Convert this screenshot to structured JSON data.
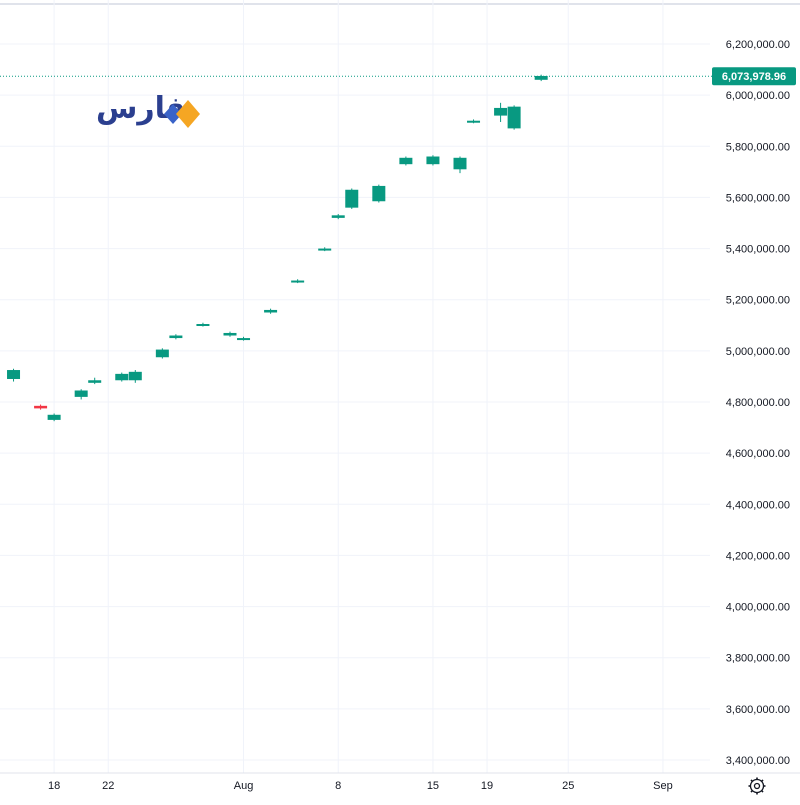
{
  "logo": {
    "text": "فارس",
    "colors": {
      "text": "#2b3f8f",
      "diamond_orange": "#f5a623",
      "diamond_blue": "#3a63c8"
    }
  },
  "colors": {
    "up": "#089981",
    "down": "#f23645",
    "grid": "#f0f3fa",
    "axis_text": "#131722",
    "last_price_tag": "#089981"
  },
  "chart_data": {
    "type": "candlestick",
    "grid": true,
    "y_axis_position": "right",
    "ylim": [
      3340000,
      6340000
    ],
    "y_ticks": [
      {
        "value": 6200000,
        "label": "6,200,000.00"
      },
      {
        "value": 6000000,
        "label": "6,000,000.00"
      },
      {
        "value": 5800000,
        "label": "5,800,000.00"
      },
      {
        "value": 5600000,
        "label": "5,600,000.00"
      },
      {
        "value": 5400000,
        "label": "5,400,000.00"
      },
      {
        "value": 5200000,
        "label": "5,200,000.00"
      },
      {
        "value": 5000000,
        "label": "5,000,000.00"
      },
      {
        "value": 4800000,
        "label": "4,800,000.00"
      },
      {
        "value": 4600000,
        "label": "4,600,000.00"
      },
      {
        "value": 4400000,
        "label": "4,400,000.00"
      },
      {
        "value": 4200000,
        "label": "4,200,000.00"
      },
      {
        "value": 4000000,
        "label": "4,000,000.00"
      },
      {
        "value": 3800000,
        "label": "3,800,000.00"
      },
      {
        "value": 3600000,
        "label": "3,600,000.00"
      },
      {
        "value": 3400000,
        "label": "3,400,000.00"
      }
    ],
    "x_domain": [
      "2024-07-14",
      "2024-09-03"
    ],
    "x_ticks": [
      {
        "date": "2024-07-18",
        "label": "18"
      },
      {
        "date": "2024-07-22",
        "label": "22"
      },
      {
        "date": "2024-08-01",
        "label": "Aug"
      },
      {
        "date": "2024-08-08",
        "label": "8"
      },
      {
        "date": "2024-08-15",
        "label": "15"
      },
      {
        "date": "2024-08-19",
        "label": "19"
      },
      {
        "date": "2024-08-25",
        "label": "25"
      },
      {
        "date": "2024-09-01",
        "label": "Sep"
      }
    ],
    "candles": [
      {
        "date": "2024-07-15",
        "open": 4890000,
        "high": 4930000,
        "low": 4880000,
        "close": 4925000
      },
      {
        "date": "2024-07-17",
        "open": 4785000,
        "high": 4790000,
        "low": 4770000,
        "close": 4775000
      },
      {
        "date": "2024-07-18",
        "open": 4730000,
        "high": 4755000,
        "low": 4725000,
        "close": 4750000
      },
      {
        "date": "2024-07-20",
        "open": 4820000,
        "high": 4850000,
        "low": 4810000,
        "close": 4845000
      },
      {
        "date": "2024-07-21",
        "open": 4875000,
        "high": 4895000,
        "low": 4870000,
        "close": 4885000
      },
      {
        "date": "2024-07-23",
        "open": 4885000,
        "high": 4915000,
        "low": 4880000,
        "close": 4910000
      },
      {
        "date": "2024-07-24",
        "open": 4885000,
        "high": 4925000,
        "low": 4875000,
        "close": 4918000
      },
      {
        "date": "2024-07-26",
        "open": 4975000,
        "high": 5010000,
        "low": 4970000,
        "close": 5005000
      },
      {
        "date": "2024-07-27",
        "open": 5050000,
        "high": 5065000,
        "low": 5045000,
        "close": 5060000
      },
      {
        "date": "2024-07-29",
        "open": 5100000,
        "high": 5110000,
        "low": 5095000,
        "close": 5105000
      },
      {
        "date": "2024-07-31",
        "open": 5060000,
        "high": 5075000,
        "low": 5055000,
        "close": 5070000
      },
      {
        "date": "2024-08-01",
        "open": 5045000,
        "high": 5055000,
        "low": 5040000,
        "close": 5050000
      },
      {
        "date": "2024-08-03",
        "open": 5150000,
        "high": 5165000,
        "low": 5145000,
        "close": 5160000
      },
      {
        "date": "2024-08-05",
        "open": 5270000,
        "high": 5280000,
        "low": 5265000,
        "close": 5275000
      },
      {
        "date": "2024-08-07",
        "open": 5395000,
        "high": 5405000,
        "low": 5390000,
        "close": 5400000
      },
      {
        "date": "2024-08-08",
        "open": 5520000,
        "high": 5535000,
        "low": 5515000,
        "close": 5530000
      },
      {
        "date": "2024-08-09",
        "open": 5560000,
        "high": 5635000,
        "low": 5555000,
        "close": 5630000
      },
      {
        "date": "2024-08-11",
        "open": 5585000,
        "high": 5650000,
        "low": 5580000,
        "close": 5645000
      },
      {
        "date": "2024-08-13",
        "open": 5730000,
        "high": 5760000,
        "low": 5725000,
        "close": 5755000
      },
      {
        "date": "2024-08-15",
        "open": 5730000,
        "high": 5765000,
        "low": 5725000,
        "close": 5760000
      },
      {
        "date": "2024-08-17",
        "open": 5710000,
        "high": 5760000,
        "low": 5695000,
        "close": 5755000
      },
      {
        "date": "2024-08-18",
        "open": 5895000,
        "high": 5905000,
        "low": 5890000,
        "close": 5900000
      },
      {
        "date": "2024-08-20",
        "open": 5920000,
        "high": 5970000,
        "low": 5895000,
        "close": 5950000
      },
      {
        "date": "2024-08-21",
        "open": 5870000,
        "high": 5960000,
        "low": 5865000,
        "close": 5955000
      },
      {
        "date": "2024-08-23",
        "open": 6060000,
        "high": 6080000,
        "low": 6055000,
        "close": 6075000
      }
    ],
    "last_price": {
      "value": 6073978.96,
      "label": "6,073,978.96"
    },
    "settings_icon": "gear-icon"
  }
}
